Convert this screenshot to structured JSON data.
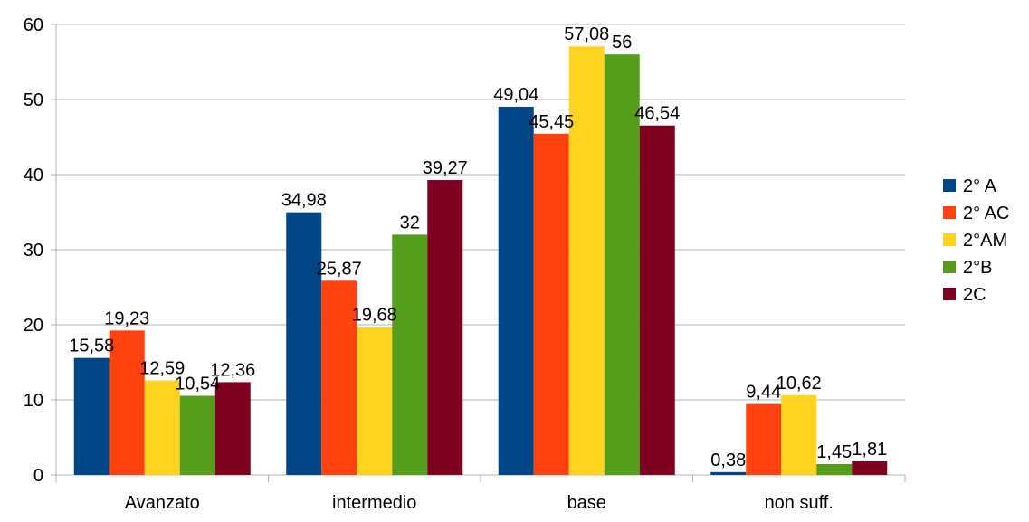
{
  "chart_data": {
    "type": "bar",
    "title": "",
    "xlabel": "",
    "ylabel": "",
    "categories": [
      "Avanzato",
      "intermedio",
      "base",
      "non suff."
    ],
    "series": [
      {
        "name": "2° A",
        "color": "#004586",
        "values": [
          15.58,
          34.98,
          49.04,
          0.38
        ],
        "labels": [
          "15,58",
          "34,98",
          "49,04",
          "0,38"
        ]
      },
      {
        "name": "2° AC",
        "color": "#ff420e",
        "values": [
          19.23,
          25.87,
          45.45,
          9.44
        ],
        "labels": [
          "19,23",
          "25,87",
          "45,45",
          "9,44"
        ]
      },
      {
        "name": "2°AM",
        "color": "#ffd320",
        "values": [
          12.59,
          19.68,
          57.08,
          10.62
        ],
        "labels": [
          "12,59",
          "19,68",
          "57,08",
          "10,62"
        ]
      },
      {
        "name": "2°B",
        "color": "#579d1c",
        "values": [
          10.54,
          32,
          56,
          1.45
        ],
        "labels": [
          "10,54",
          "32",
          "56",
          "1,45"
        ]
      },
      {
        "name": "2C",
        "color": "#7e0021",
        "values": [
          12.36,
          39.27,
          46.54,
          1.81
        ],
        "labels": [
          "12,36",
          "39,27",
          "46,54",
          "1,81"
        ]
      }
    ],
    "ylim": [
      0,
      60
    ],
    "yticks": [
      0,
      10,
      20,
      30,
      40,
      50,
      60
    ],
    "grid": true,
    "legend": "right"
  }
}
